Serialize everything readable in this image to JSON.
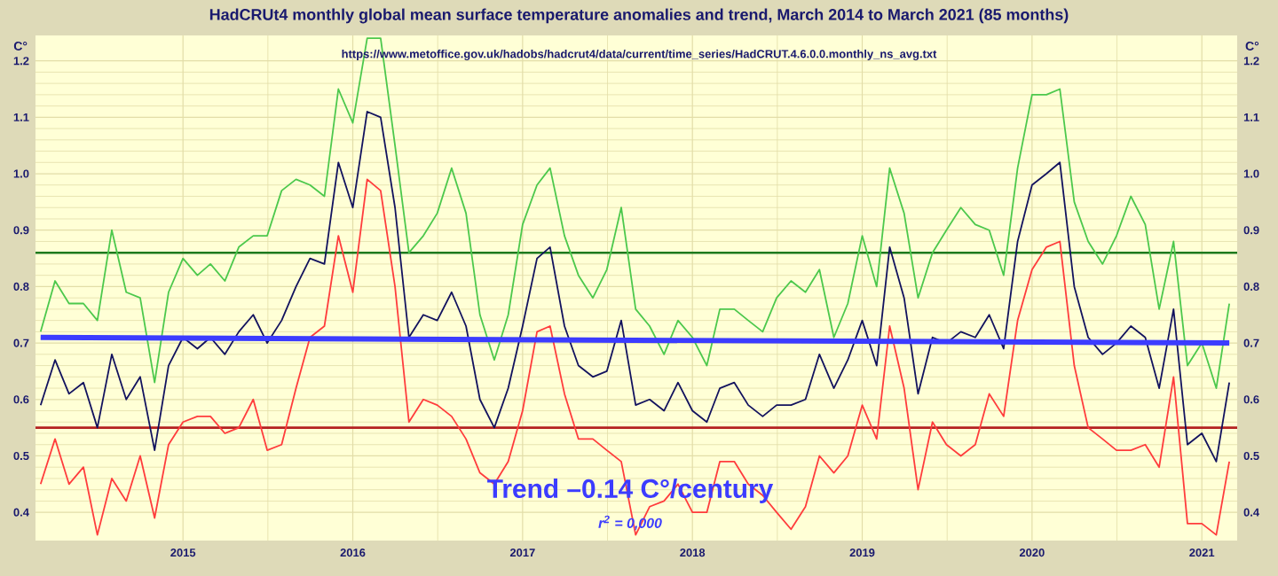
{
  "chart_data": {
    "type": "line",
    "title": "HadCRUt4 monthly global mean surface temperature anomalies and trend, March 2014 to March 2021 (85 months)",
    "annotations": [
      "https://www.metoffice.gov.uk/hadobs/hadcrut4/data/current/time_series/HadCRUT.4.6.0.0.monthly_ns_avg.txt",
      "Trend –0.14 C°/century",
      "r$^{2}$ = 0,000"
    ],
    "ylabel": "C°",
    "y2label": "C°",
    "x": [
      "2014-03",
      "2014-04",
      "2014-05",
      "2014-06",
      "2014-07",
      "2014-08",
      "2014-09",
      "2014-10",
      "2014-11",
      "2014-12",
      "2015-01",
      "2015-02",
      "2015-03",
      "2015-04",
      "2015-05",
      "2015-06",
      "2015-07",
      "2015-08",
      "2015-09",
      "2015-10",
      "2015-11",
      "2015-12",
      "2016-01",
      "2016-02",
      "2016-03",
      "2016-04",
      "2016-05",
      "2016-06",
      "2016-07",
      "2016-08",
      "2016-09",
      "2016-10",
      "2016-11",
      "2016-12",
      "2017-01",
      "2017-02",
      "2017-03",
      "2017-04",
      "2017-05",
      "2017-06",
      "2017-07",
      "2017-08",
      "2017-09",
      "2017-10",
      "2017-11",
      "2017-12",
      "2018-01",
      "2018-02",
      "2018-03",
      "2018-04",
      "2018-05",
      "2018-06",
      "2018-07",
      "2018-08",
      "2018-09",
      "2018-10",
      "2018-11",
      "2018-12",
      "2019-01",
      "2019-02",
      "2019-03",
      "2019-04",
      "2019-05",
      "2019-06",
      "2019-07",
      "2019-08",
      "2019-09",
      "2019-10",
      "2019-11",
      "2019-12",
      "2020-01",
      "2020-02",
      "2020-03",
      "2020-04",
      "2020-05",
      "2020-06",
      "2020-07",
      "2020-08",
      "2020-09",
      "2020-10",
      "2020-11",
      "2020-12",
      "2021-01",
      "2021-02",
      "2021-03"
    ],
    "xlim": [
      "2014-02-18",
      "2021-03-18"
    ],
    "xticks": [
      {
        "value": "2015-01",
        "label": "2015"
      },
      {
        "value": "2016-01",
        "label": "2016"
      },
      {
        "value": "2017-01",
        "label": "2017"
      },
      {
        "value": "2018-01",
        "label": "2018"
      },
      {
        "value": "2019-01",
        "label": "2019"
      },
      {
        "value": "2020-01",
        "label": "2020"
      },
      {
        "value": "2021-01",
        "label": "2021"
      }
    ],
    "ylim": [
      0.35,
      1.245
    ],
    "yticks": [
      0.4,
      0.5,
      0.6,
      0.7,
      0.8,
      0.9,
      {
        "value": 1,
        "label": "1.0"
      },
      1.1,
      1.2
    ],
    "y2lim": [
      0.35,
      1.245
    ],
    "y2ticks": [
      0.4,
      0.5,
      0.6,
      0.7,
      0.8,
      0.9,
      {
        "value": 1,
        "label": "1.0"
      },
      1.1,
      1.2
    ],
    "grid": true,
    "series": [
      {
        "color": "#4cc84c",
        "values": [
          0.72,
          0.81,
          0.77,
          0.77,
          0.74,
          0.9,
          0.79,
          0.78,
          0.63,
          0.79,
          0.85,
          0.82,
          0.84,
          0.81,
          0.87,
          0.89,
          0.89,
          0.97,
          0.99,
          0.98,
          0.96,
          1.15,
          1.09,
          1.24,
          1.24,
          1.05,
          0.86,
          0.89,
          0.93,
          1.01,
          0.93,
          0.75,
          0.67,
          0.75,
          0.91,
          0.98,
          1.01,
          0.89,
          0.82,
          0.78,
          0.83,
          0.94,
          0.76,
          0.73,
          0.68,
          0.74,
          0.71,
          0.66,
          0.76,
          0.76,
          0.74,
          0.72,
          0.78,
          0.81,
          0.79,
          0.83,
          0.71,
          0.77,
          0.89,
          0.8,
          1.01,
          0.93,
          0.78,
          0.86,
          0.9,
          0.94,
          0.91,
          0.9,
          0.82,
          1.01,
          1.14,
          1.14,
          1.15,
          0.95,
          0.88,
          0.84,
          0.89,
          0.96,
          0.91,
          0.76,
          0.88,
          0.66,
          0.7,
          0.62,
          0.77
        ]
      },
      {
        "color": "#12125e",
        "values": [
          0.59,
          0.67,
          0.61,
          0.63,
          0.55,
          0.68,
          0.6,
          0.64,
          0.51,
          0.66,
          0.71,
          0.69,
          0.71,
          0.68,
          0.72,
          0.75,
          0.7,
          0.74,
          0.8,
          0.85,
          0.84,
          1.02,
          0.94,
          1.11,
          1.1,
          0.94,
          0.71,
          0.75,
          0.74,
          0.79,
          0.73,
          0.6,
          0.55,
          0.62,
          0.73,
          0.85,
          0.87,
          0.73,
          0.66,
          0.64,
          0.65,
          0.74,
          0.59,
          0.6,
          0.58,
          0.63,
          0.58,
          0.56,
          0.62,
          0.63,
          0.59,
          0.57,
          0.59,
          0.59,
          0.6,
          0.68,
          0.62,
          0.67,
          0.74,
          0.66,
          0.87,
          0.78,
          0.61,
          0.71,
          0.7,
          0.72,
          0.71,
          0.75,
          0.69,
          0.88,
          0.98,
          1.0,
          1.02,
          0.8,
          0.71,
          0.68,
          0.7,
          0.73,
          0.71,
          0.62,
          0.76,
          0.52,
          0.54,
          0.49,
          0.63
        ]
      },
      {
        "color": "#ff3c3c",
        "values": [
          0.45,
          0.53,
          0.45,
          0.48,
          0.36,
          0.46,
          0.42,
          0.5,
          0.39,
          0.52,
          0.56,
          0.57,
          0.57,
          0.54,
          0.55,
          0.6,
          0.51,
          0.52,
          0.62,
          0.71,
          0.73,
          0.89,
          0.79,
          0.99,
          0.97,
          0.8,
          0.56,
          0.6,
          0.59,
          0.57,
          0.53,
          0.47,
          0.45,
          0.49,
          0.58,
          0.72,
          0.73,
          0.61,
          0.53,
          0.53,
          0.51,
          0.49,
          0.36,
          0.41,
          0.42,
          0.45,
          0.4,
          0.4,
          0.49,
          0.49,
          0.45,
          0.43,
          0.4,
          0.37,
          0.41,
          0.5,
          0.47,
          0.5,
          0.59,
          0.53,
          0.73,
          0.62,
          0.44,
          0.56,
          0.52,
          0.5,
          0.52,
          0.61,
          0.57,
          0.74,
          0.83,
          0.87,
          0.88,
          0.66,
          0.55,
          0.53,
          0.51,
          0.51,
          0.52,
          0.48,
          0.64,
          0.38,
          0.38,
          0.36,
          0.49
        ]
      },
      {
        "color": "#3c3cff",
        "x": [
          "2014-03",
          "2021-03"
        ],
        "values": [
          0.71,
          0.7
        ]
      }
    ],
    "ref_lines": [
      {
        "axis": "y",
        "value": 0.86,
        "color": "#1e7a1e"
      },
      {
        "axis": "y",
        "value": 0.55,
        "color": "#b42222"
      }
    ]
  }
}
